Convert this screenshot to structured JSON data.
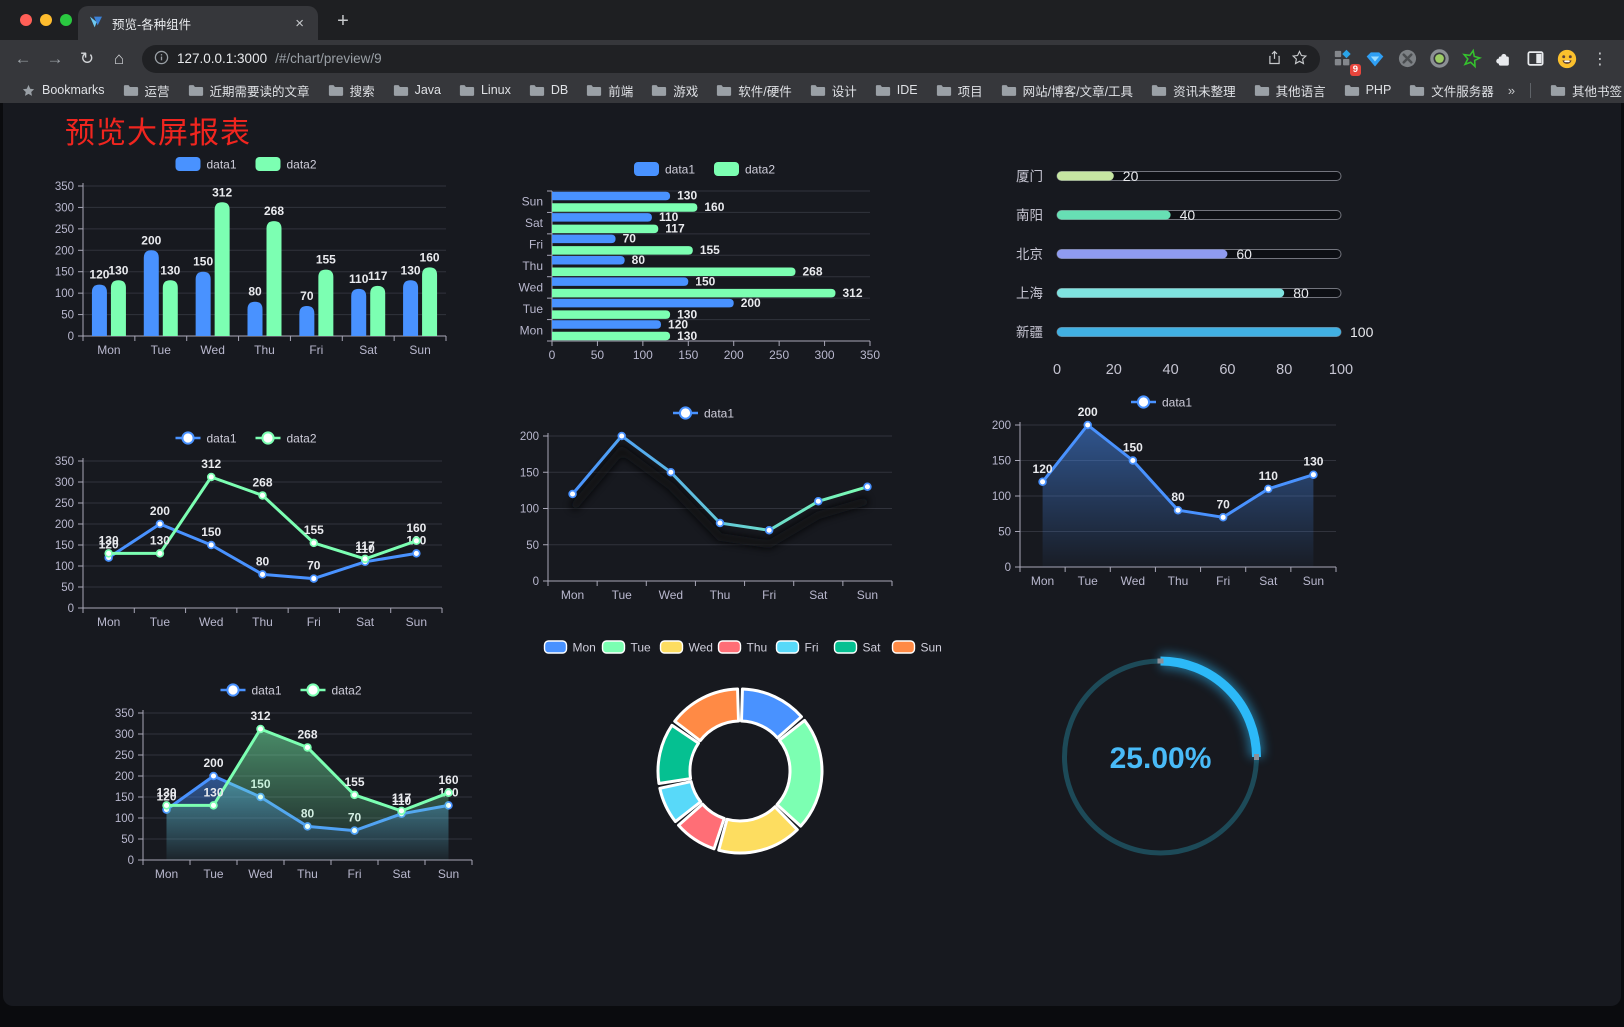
{
  "browser": {
    "tab": {
      "title": "预览-各种组件"
    },
    "icons": {
      "close": "×",
      "new_tab": "+",
      "back": "←",
      "forward": "→",
      "reload": "↻",
      "home": "⌂",
      "menu": "⋮"
    },
    "address": {
      "host": "127.0.0.1:3000",
      "path": "/#/chart/preview/9"
    },
    "extension_badge": "9",
    "bookmarks_bar": {
      "label": "Bookmarks",
      "folders": [
        "运营",
        "近期需要读的文章",
        "搜索",
        "Java",
        "Linux",
        "DB",
        "前端",
        "游戏",
        "软件/硬件",
        "设计",
        "IDE",
        "项目",
        "网站/博客/文章/工具",
        "资讯未整理",
        "其他语言",
        "PHP",
        "文件服务器"
      ],
      "overflow_glyph": "»",
      "other_bookmarks": "其他书签"
    }
  },
  "page": {
    "title": "预览大屏报表",
    "title_color": "#f0251f",
    "background": "#17191f"
  },
  "chart_data": [
    {
      "id": "grouped-bar",
      "type": "bar",
      "categories": [
        "Mon",
        "Tue",
        "Wed",
        "Thu",
        "Fri",
        "Sat",
        "Sun"
      ],
      "series": [
        {
          "name": "data1",
          "color": "#4992ff",
          "values": [
            120,
            200,
            150,
            80,
            70,
            110,
            130
          ]
        },
        {
          "name": "data2",
          "color": "#7cffb2",
          "values": [
            130,
            130,
            312,
            268,
            155,
            117,
            160
          ]
        }
      ],
      "ylim": [
        0,
        350
      ],
      "ytick_step": 50,
      "legend_position": "top",
      "grid": true,
      "value_labels": true
    },
    {
      "id": "grouped-horizontal-bar",
      "type": "hbar",
      "categories": [
        "Mon",
        "Tue",
        "Wed",
        "Thu",
        "Fri",
        "Sat",
        "Sun"
      ],
      "series": [
        {
          "name": "data1",
          "color": "#4992ff",
          "values": [
            120,
            200,
            150,
            80,
            70,
            110,
            130
          ]
        },
        {
          "name": "data2",
          "color": "#7cffb2",
          "values": [
            130,
            130,
            312,
            268,
            155,
            117,
            160
          ]
        }
      ],
      "xlim": [
        0,
        350
      ],
      "xtick_step": 50,
      "legend_position": "top",
      "value_labels": true
    },
    {
      "id": "city-progress-bars",
      "type": "progress",
      "max": 100,
      "axis_ticks": [
        0,
        20,
        40,
        60,
        80,
        100
      ],
      "items": [
        {
          "label": "厦门",
          "value": 20,
          "color": "#c6e6a2"
        },
        {
          "label": "南阳",
          "value": 40,
          "color": "#67dfb4"
        },
        {
          "label": "北京",
          "value": 60,
          "color": "#8f9bf0"
        },
        {
          "label": "上海",
          "value": 80,
          "color": "#7fe3e0"
        },
        {
          "label": "新疆",
          "value": 100,
          "color": "#41b0e2"
        }
      ]
    },
    {
      "id": "line-two-series",
      "type": "line",
      "categories": [
        "Mon",
        "Tue",
        "Wed",
        "Thu",
        "Fri",
        "Sat",
        "Sun"
      ],
      "series": [
        {
          "name": "data1",
          "color": "#4992ff",
          "values": [
            120,
            200,
            150,
            80,
            70,
            110,
            130
          ]
        },
        {
          "name": "data2",
          "color": "#7cffb2",
          "values": [
            130,
            130,
            312,
            268,
            155,
            117,
            160
          ]
        }
      ],
      "ylim": [
        0,
        350
      ],
      "ytick_step": 50,
      "legend_position": "top",
      "value_labels": true
    },
    {
      "id": "line-gradient-shadow",
      "type": "line",
      "categories": [
        "Mon",
        "Tue",
        "Wed",
        "Thu",
        "Fri",
        "Sat",
        "Sun"
      ],
      "series": [
        {
          "name": "data1",
          "gradient": [
            "#4992ff",
            "#7cffb2"
          ],
          "marker_color": "#4992ff",
          "shadow": true,
          "values": [
            120,
            200,
            150,
            80,
            70,
            110,
            130
          ]
        }
      ],
      "ylim": [
        0,
        200
      ],
      "ytick_step": 50,
      "legend_position": "top",
      "value_labels": false
    },
    {
      "id": "line-area-single",
      "type": "line",
      "categories": [
        "Mon",
        "Tue",
        "Wed",
        "Thu",
        "Fri",
        "Sat",
        "Sun"
      ],
      "series": [
        {
          "name": "data1",
          "color": "#4992ff",
          "area": true,
          "values": [
            120,
            200,
            150,
            80,
            70,
            110,
            130
          ]
        }
      ],
      "ylim": [
        0,
        200
      ],
      "ytick_step": 50,
      "legend_position": "top",
      "value_labels": true
    },
    {
      "id": "line-two-area",
      "type": "line",
      "categories": [
        "Mon",
        "Tue",
        "Wed",
        "Thu",
        "Fri",
        "Sat",
        "Sun"
      ],
      "series": [
        {
          "name": "data1",
          "color": "#4992ff",
          "area": true,
          "values": [
            120,
            200,
            150,
            80,
            70,
            110,
            130
          ]
        },
        {
          "name": "data2",
          "color": "#7cffb2",
          "area": true,
          "values": [
            130,
            130,
            312,
            268,
            155,
            117,
            160
          ]
        }
      ],
      "ylim": [
        0,
        350
      ],
      "ytick_step": 50,
      "legend_position": "top",
      "value_labels": true
    },
    {
      "id": "weekday-donut",
      "type": "pie",
      "categories": [
        "Mon",
        "Tue",
        "Wed",
        "Thu",
        "Fri",
        "Sat",
        "Sun"
      ],
      "values": [
        120,
        200,
        150,
        80,
        70,
        110,
        130
      ],
      "colors": [
        "#4992ff",
        "#7cffb2",
        "#fddd60",
        "#ff6e76",
        "#58d9f9",
        "#05c091",
        "#ff8a45"
      ],
      "inner_radius_ratio": 0.61,
      "legend_position": "top",
      "border_color": "#ffffff"
    },
    {
      "id": "percent-gauge",
      "type": "gauge",
      "value": 25,
      "label": "25.00%",
      "color": "#2cb9f8",
      "track_color": "#1d4a58",
      "text_color": "#49bbf8"
    }
  ]
}
